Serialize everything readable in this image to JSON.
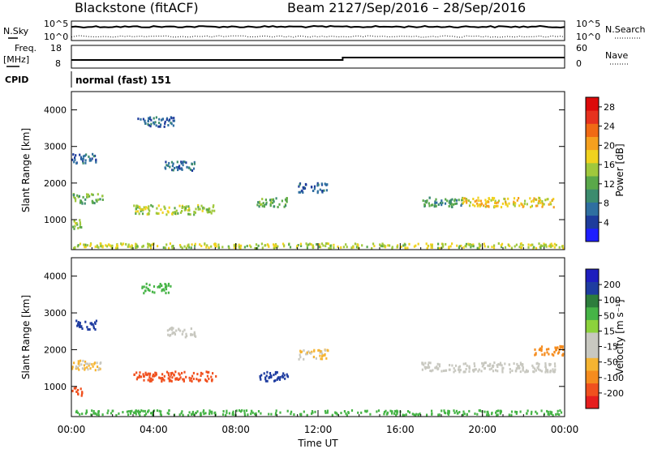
{
  "header": {
    "station": "Blackstone (fitACF)",
    "beam": "Beam 21",
    "dates": "27/Sep/2016 – 28/Sep/2016"
  },
  "summary_panels": {
    "nsky_label": "N.Sky",
    "nsearch_label": "N.Search",
    "noise_ticks_left": [
      "10^5",
      "10^0"
    ],
    "noise_ticks_right": [
      "10^5",
      "10^0"
    ],
    "freq_label_1": "Freq.",
    "freq_label_2": "[MHz]",
    "freq_ticks": [
      "18",
      "8"
    ],
    "nave_label": "Nave",
    "nave_ticks": [
      "60",
      "0"
    ],
    "cpid_label": "CPID",
    "cpid_value": "normal (fast) 151"
  },
  "colors": {
    "power_scale": [
      "#1e1eff",
      "#1e3c9c",
      "#2f6fa0",
      "#3c8c6e",
      "#5aa84a",
      "#a0c83c",
      "#f0d21e",
      "#f5a01e",
      "#f06a14",
      "#e6321e",
      "#dc0a0a"
    ],
    "velocity_scale": [
      "#e61e1e",
      "#f0501e",
      "#f58c1e",
      "#f5b432",
      "#c8c8c0",
      "#c8c8c0",
      "#8cd23c",
      "#46b446",
      "#2d7d3c",
      "#1e3ca0",
      "#1e1ebe"
    ]
  },
  "chart_data": [
    {
      "type": "heatmap",
      "title": "Power",
      "ylabel": "Slant Range [km]",
      "ylim": [
        180,
        4500
      ],
      "yticks": [
        "1000",
        "2000",
        "3000",
        "4000"
      ],
      "xticks": [
        "00:00",
        "04:00",
        "08:00",
        "12:00",
        "16:00",
        "20:00",
        "00:00"
      ],
      "colorbar_label": "Power [dB]",
      "colorbar_ticks": [
        "4",
        "8",
        "12",
        "16",
        "20",
        "24",
        "28"
      ],
      "colorbar_range": [
        0,
        30
      ],
      "features": [
        {
          "t_start": 0.0,
          "t_end": 0.5,
          "range": 900,
          "value": 14
        },
        {
          "t_start": 0.0,
          "t_end": 1.5,
          "range": 1600,
          "value": 13
        },
        {
          "t_start": 0.0,
          "t_end": 1.2,
          "range": 2700,
          "value": 6
        },
        {
          "t_start": 3.2,
          "t_end": 5.0,
          "range": 3700,
          "value": 6
        },
        {
          "t_start": 4.5,
          "t_end": 6.0,
          "range": 2500,
          "value": 7
        },
        {
          "t_start": 3.0,
          "t_end": 7.0,
          "range": 1300,
          "value": 15
        },
        {
          "t_start": 9.0,
          "t_end": 10.5,
          "range": 1500,
          "value": 12
        },
        {
          "t_start": 11.0,
          "t_end": 12.5,
          "range": 1900,
          "value": 6
        },
        {
          "t_start": 17.0,
          "t_end": 19.0,
          "range": 1500,
          "value": 10
        },
        {
          "t_start": 19.0,
          "t_end": 23.5,
          "range": 1500,
          "value": 18
        },
        {
          "t_start": 0.0,
          "t_end": 24.0,
          "range": 250,
          "value": 16
        }
      ]
    },
    {
      "type": "heatmap",
      "title": "Velocity",
      "ylabel": "Slant Range [km]",
      "xlabel": "Time UT",
      "ylim": [
        180,
        4500
      ],
      "yticks": [
        "1000",
        "2000",
        "3000",
        "4000"
      ],
      "xticks": [
        "00:00",
        "04:00",
        "08:00",
        "12:00",
        "16:00",
        "20:00",
        "00:00"
      ],
      "colorbar_label": "Velocity [m s⁻¹]",
      "colorbar_ticks": [
        "200",
        "100",
        "50",
        "15",
        "-15",
        "-50",
        "-100",
        "-200"
      ],
      "colorbar_range": [
        -250,
        250
      ],
      "features": [
        {
          "t_start": 0.0,
          "t_end": 0.5,
          "range": 900,
          "value": -150
        },
        {
          "t_start": 0.2,
          "t_end": 1.2,
          "range": 2700,
          "value": 180
        },
        {
          "t_start": 0.0,
          "t_end": 1.5,
          "range": 1600,
          "value": -30
        },
        {
          "t_start": 3.4,
          "t_end": 4.8,
          "range": 3700,
          "value": 40
        },
        {
          "t_start": 4.6,
          "t_end": 6.0,
          "range": 2500,
          "value": 0
        },
        {
          "t_start": 3.0,
          "t_end": 7.0,
          "range": 1300,
          "value": -120
        },
        {
          "t_start": 9.0,
          "t_end": 10.5,
          "range": 1300,
          "value": 120
        },
        {
          "t_start": 11.0,
          "t_end": 12.5,
          "range": 1900,
          "value": -30
        },
        {
          "t_start": 17.0,
          "t_end": 23.5,
          "range": 1550,
          "value": 0
        },
        {
          "t_start": 22.5,
          "t_end": 24.0,
          "range": 2000,
          "value": -60
        },
        {
          "t_start": 0.0,
          "t_end": 24.0,
          "range": 250,
          "value": 40
        }
      ]
    }
  ]
}
